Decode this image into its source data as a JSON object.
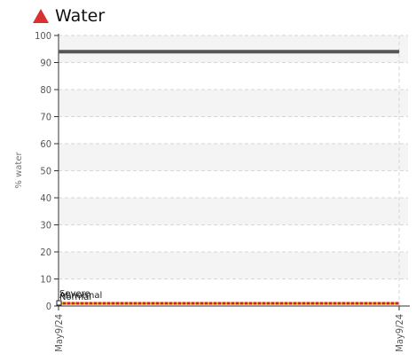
{
  "chart_data": {
    "type": "line",
    "title": "Water",
    "ylabel": "% water",
    "xlabel": "",
    "ylim": [
      0,
      100
    ],
    "yticks": [
      "0",
      "10",
      "20",
      "30",
      "40",
      "50",
      "60",
      "70",
      "80",
      "90",
      "100"
    ],
    "x": [
      "May9/24",
      "May9/24"
    ],
    "series": [
      {
        "values": [
          94,
          94
        ],
        "color": "#555555"
      }
    ],
    "threshold_band": {
      "values": [
        1,
        1
      ],
      "colors": [
        "#e8a000",
        "#d42020"
      ]
    },
    "segment_labels": [
      "Severe",
      "Abnormal",
      "Normal"
    ],
    "grid": true,
    "warning_color": "#d93030"
  }
}
